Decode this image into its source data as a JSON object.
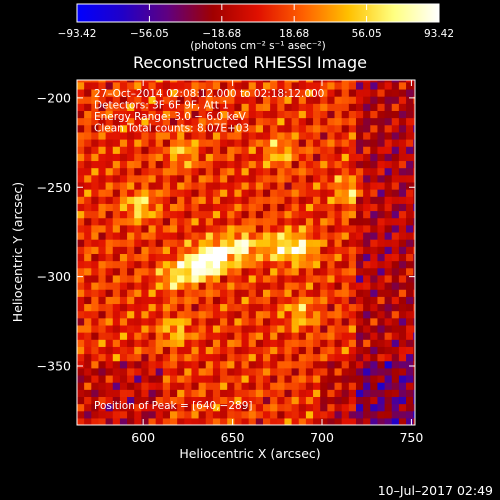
{
  "chart_data": {
    "type": "heatmap",
    "title": "Reconstructed RHESSI Image",
    "xlabel": "Heliocentric X (arcsec)",
    "ylabel": "Heliocentric Y (arcsec)",
    "xlim": [
      563,
      752
    ],
    "ylim": [
      -383,
      -190
    ],
    "xticks": [
      600,
      650,
      700,
      750
    ],
    "yticks": [
      -200,
      -250,
      -300,
      -350
    ],
    "xtick_labels": [
      "600",
      "650",
      "700",
      "750"
    ],
    "ytick_labels": [
      "−200",
      "−250",
      "−300",
      "−350"
    ],
    "colorbar": {
      "range": [
        -93.42,
        93.42
      ],
      "ticks": [
        -93.42,
        -56.05,
        -18.68,
        18.68,
        56.05,
        93.42
      ],
      "tick_labels": [
        "−93.42",
        "−56.05",
        "−18.68",
        "18.68",
        "56.05",
        "93.42"
      ],
      "units_label": "(photons cm⁻² s⁻¹ asec⁻²)",
      "colormap": [
        "#0000ff",
        "#2000c8",
        "#600080",
        "#a00000",
        "#e01000",
        "#ff6000",
        "#ffc000",
        "#ffff80",
        "#ffffff"
      ]
    },
    "annotations": [
      "27–Oct–2014 02:08:12.000 to 02:18:12.000",
      "Detectors: 3F 6F 9F, Att 1",
      "Energy Range: 3.0 − 6.0 keV",
      "Clean    Total counts: 8.07E+03"
    ],
    "peak_label": "Position of Peak = [640,−289]",
    "peak": {
      "x": 640,
      "y": -289,
      "value": 93.42
    },
    "sources": [
      {
        "x": 640,
        "y": -289,
        "value": 93
      },
      {
        "x": 630,
        "y": -294,
        "value": 78
      },
      {
        "x": 655,
        "y": -283,
        "value": 70
      },
      {
        "x": 688,
        "y": -284,
        "value": 62
      },
      {
        "x": 598,
        "y": -260,
        "value": 52
      },
      {
        "x": 617,
        "y": -300,
        "value": 48
      },
      {
        "x": 675,
        "y": -283,
        "value": 50
      },
      {
        "x": 622,
        "y": -230,
        "value": 38
      },
      {
        "x": 676,
        "y": -230,
        "value": 40
      },
      {
        "x": 716,
        "y": -252,
        "value": 44
      },
      {
        "x": 688,
        "y": -320,
        "value": 40
      },
      {
        "x": 618,
        "y": -330,
        "value": 42
      }
    ],
    "background_ripple_amplitude": 30,
    "grid": false
  },
  "footer": {
    "timestamp": "10–Jul–2017 02:49"
  }
}
